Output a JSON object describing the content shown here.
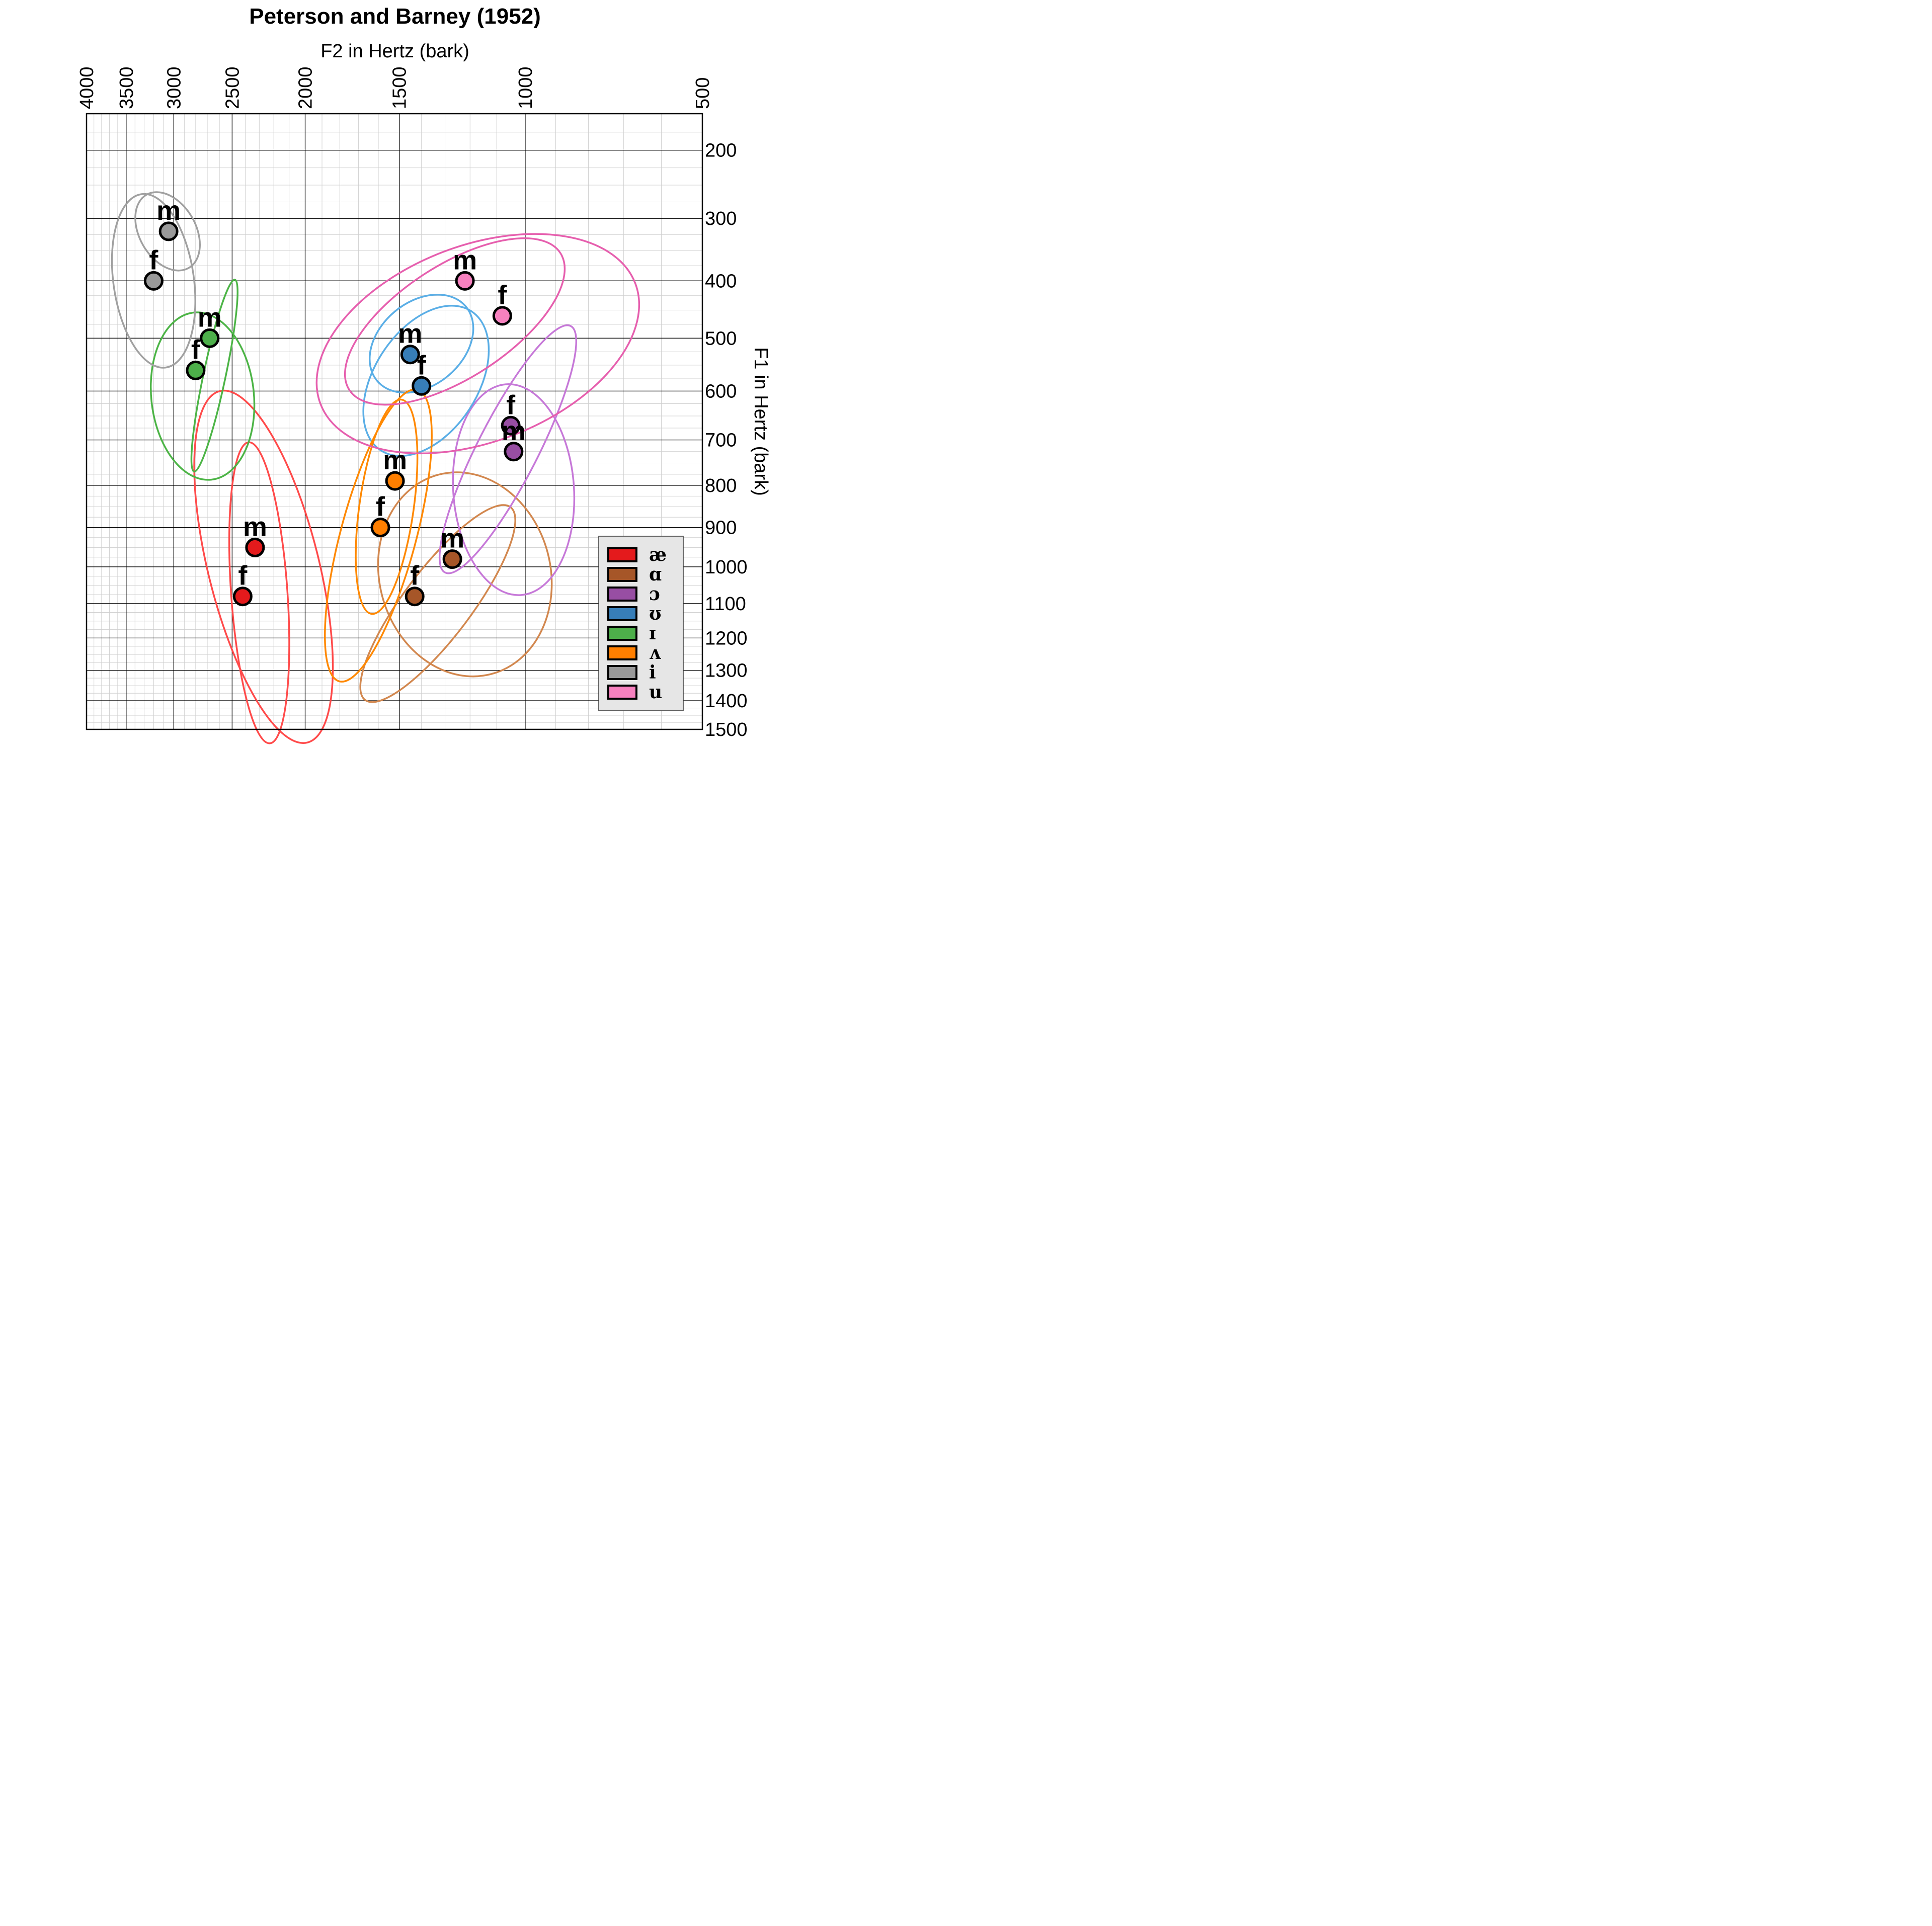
{
  "chart_data": {
    "type": "scatter",
    "title": "Peterson and Barney (1952)",
    "xlabel": "F2 in Hertz (bark)",
    "ylabel": "F1 in Hertz (bark)",
    "x_scale": "bark",
    "y_scale": "bark",
    "x_reversed": true,
    "y_reversed": true,
    "xlim": [
      4000,
      500
    ],
    "ylim": [
      150,
      1500
    ],
    "x_ticks": [
      4000,
      3500,
      3000,
      2500,
      2000,
      1500,
      1000,
      500
    ],
    "y_ticks": [
      200,
      300,
      400,
      500,
      600,
      700,
      800,
      900,
      1000,
      1100,
      1200,
      1300,
      1400,
      1500
    ],
    "grid": true,
    "legend_position": "bottom-right",
    "series": [
      {
        "name": "æ",
        "color": "#e41a1c",
        "ellipse_color": "#ff4a4a",
        "points": [
          {
            "label": "m",
            "f2": 2330,
            "f1": 950
          },
          {
            "label": "f",
            "f2": 2420,
            "f1": 1080
          }
        ],
        "ellipses": [
          {
            "cf2": 2300,
            "cf1": 1070,
            "a": 56,
            "b": 300,
            "tilt": -4
          },
          {
            "cf2": 2270,
            "cf1": 1000,
            "a": 110,
            "b": 360,
            "tilt": -14
          }
        ]
      },
      {
        "name": "ɑ",
        "color": "#a65628",
        "ellipse_color": "#d2874e",
        "points": [
          {
            "label": "m",
            "f2": 1270,
            "f1": 980
          },
          {
            "label": "f",
            "f2": 1430,
            "f1": 1080
          }
        ],
        "ellipses": [
          {
            "cf2": 1330,
            "cf1": 1100,
            "a": 67,
            "b": 240,
            "tilt": 37
          },
          {
            "cf2": 1220,
            "cf1": 1020,
            "a": 170,
            "b": 205,
            "tilt": -15
          }
        ]
      },
      {
        "name": "ɔ",
        "color": "#984ea3",
        "ellipse_color": "#c678d8",
        "points": [
          {
            "label": "f",
            "f2": 1050,
            "f1": 670
          },
          {
            "label": "m",
            "f2": 1040,
            "f1": 725
          }
        ],
        "ellipses": [
          {
            "cf2": 1060,
            "cf1": 720,
            "a": 60,
            "b": 275,
            "tilt": 27
          },
          {
            "cf2": 1040,
            "cf1": 810,
            "a": 120,
            "b": 210,
            "tilt": -4
          }
        ]
      },
      {
        "name": "ʊ",
        "color": "#377eb8",
        "ellipse_color": "#5aaee6",
        "points": [
          {
            "label": "m",
            "f2": 1450,
            "f1": 530
          },
          {
            "label": "f",
            "f2": 1400,
            "f1": 590
          }
        ],
        "ellipses": [
          {
            "cf2": 1400,
            "cf1": 510,
            "a": 83,
            "b": 115,
            "tilt": 50
          },
          {
            "cf2": 1380,
            "cf1": 580,
            "a": 103,
            "b": 165,
            "tilt": 33
          }
        ]
      },
      {
        "name": "ɪ",
        "color": "#4daf4a",
        "ellipse_color": "#4cb446",
        "points": [
          {
            "label": "m",
            "f2": 2680,
            "f1": 500
          },
          {
            "label": "f",
            "f2": 2800,
            "f1": 560
          }
        ],
        "ellipses": [
          {
            "cf2": 2640,
            "cf1": 570,
            "a": 22,
            "b": 195,
            "tilt": 12
          },
          {
            "cf2": 2740,
            "cf1": 610,
            "a": 102,
            "b": 167,
            "tilt": -6
          }
        ]
      },
      {
        "name": "ʌ",
        "color": "#ff7f00",
        "ellipse_color": "#ff8800",
        "points": [
          {
            "label": "m",
            "f2": 1520,
            "f1": 790
          },
          {
            "label": "f",
            "f2": 1590,
            "f1": 900
          }
        ],
        "ellipses": [
          {
            "cf2": 1560,
            "cf1": 850,
            "a": 54,
            "b": 215,
            "tilt": 8
          },
          {
            "cf2": 1600,
            "cf1": 920,
            "a": 75,
            "b": 300,
            "tilt": 15
          }
        ]
      },
      {
        "name": "i",
        "color": "#999999",
        "ellipse_color": "#a0a0a0",
        "points": [
          {
            "label": "m",
            "f2": 3050,
            "f1": 320
          },
          {
            "label": "f",
            "f2": 3200,
            "f1": 400
          }
        ],
        "ellipses": [
          {
            "cf2": 3060,
            "cf1": 320,
            "a": 56,
            "b": 84,
            "tilt": -30
          },
          {
            "cf2": 3200,
            "cf1": 400,
            "a": 80,
            "b": 174,
            "tilt": -8
          }
        ]
      },
      {
        "name": "u",
        "color": "#f781bf",
        "ellipse_color": "#e65fae",
        "points": [
          {
            "label": "m",
            "f2": 1220,
            "f1": 400
          },
          {
            "label": "f",
            "f2": 1080,
            "f1": 460
          }
        ],
        "ellipses": [
          {
            "cf2": 1260,
            "cf1": 470,
            "a": 112,
            "b": 250,
            "tilt": 57
          },
          {
            "cf2": 1170,
            "cf1": 510,
            "a": 195,
            "b": 335,
            "tilt": 69
          }
        ]
      }
    ]
  }
}
